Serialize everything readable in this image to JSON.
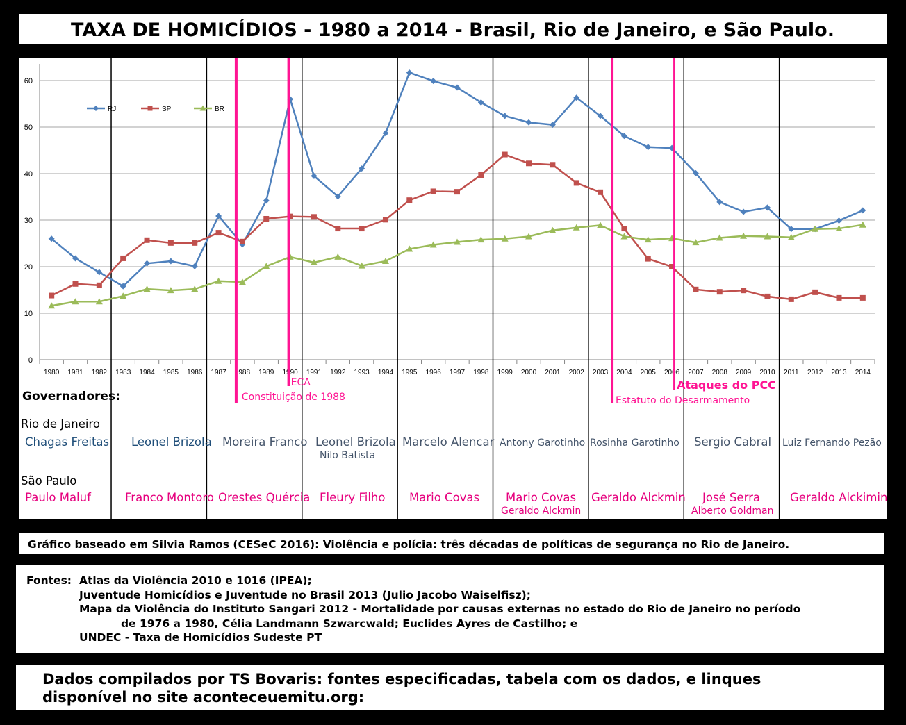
{
  "title": "TAXA DE HOMICÍDIOS - 1980 a 2014 - Brasil, Rio de Janeiro, e São Paulo.",
  "chart_data": {
    "type": "line",
    "x": [
      "1980",
      "1981",
      "1982",
      "1983",
      "1984",
      "1985",
      "1986",
      "1987",
      "1988",
      "1989",
      "1990",
      "1991",
      "1992",
      "1993",
      "1994",
      "1995",
      "1996",
      "1997",
      "1998",
      "1999",
      "2000",
      "2001",
      "2002",
      "2003",
      "2004",
      "2005",
      "2006",
      "2007",
      "2008",
      "2009",
      "2010",
      "2011",
      "2012",
      "2013",
      "2014"
    ],
    "yticks": [
      "0",
      "10",
      "20",
      "30",
      "40",
      "50",
      "60"
    ],
    "ylim": [
      0,
      63
    ],
    "grid": true,
    "legend_position": "top-left",
    "series": [
      {
        "name": "RJ",
        "color": "#4f81bd",
        "marker": "diamond",
        "values": [
          26,
          21.8,
          18.8,
          15.8,
          20.7,
          21.2,
          20.1,
          30.9,
          24.8,
          34.2,
          56,
          39.5,
          35.1,
          41.1,
          48.7,
          61.7,
          59.9,
          58.5,
          55.3,
          52.4,
          51,
          50.5,
          56.3,
          52.4,
          48.1,
          45.7,
          45.5,
          40.1,
          33.9,
          31.8,
          32.7,
          28.1,
          28.1,
          29.9,
          32.1
        ]
      },
      {
        "name": "SP",
        "color": "#c0504d",
        "marker": "square",
        "values": [
          13.8,
          16.3,
          16,
          21.8,
          25.7,
          25.1,
          25.1,
          27.3,
          25.4,
          30.3,
          30.8,
          30.7,
          28.2,
          28.2,
          30.1,
          34.3,
          36.2,
          36.1,
          39.7,
          44.1,
          42.2,
          41.9,
          38,
          36,
          28.2,
          21.7,
          20,
          15.1,
          14.6,
          14.9,
          13.6,
          13,
          14.5,
          13.3,
          13.3
        ]
      },
      {
        "name": "BR",
        "color": "#9bbb59",
        "marker": "triangle",
        "values": [
          11.6,
          12.5,
          12.5,
          13.7,
          15.2,
          14.9,
          15.2,
          16.9,
          16.7,
          20.1,
          22.1,
          20.9,
          22.1,
          20.2,
          21.2,
          23.8,
          24.7,
          25.3,
          25.8,
          26,
          26.5,
          27.8,
          28.4,
          28.9,
          26.5,
          25.8,
          26.1,
          25.2,
          26.2,
          26.6,
          26.5,
          26.3,
          28.1,
          28.2,
          29
        ]
      }
    ],
    "annotations": [
      {
        "text": "Constituição de 1988",
        "year": 1988
      },
      {
        "text": "ECA",
        "year": 1990
      },
      {
        "text": "Estatuto do Desarmamento",
        "year": 2003
      },
      {
        "text": "Ataques do PCC",
        "year": 2006
      }
    ]
  },
  "colors": {
    "rj_text": "#1f4e79",
    "sp_text": "#e6007e",
    "marker_line": "#ff1493"
  },
  "governors": {
    "header": "Governadores:",
    "rj_state": "Rio de Janeiro",
    "sp_state": "São Paulo",
    "rj": [
      "Chagas Freitas",
      "Leonel Brizola",
      "Moreira Franco",
      "Leonel Brizola",
      "Marcelo Alencar",
      "Antony Garotinho",
      "Rosinha Garotinho",
      "Sergio Cabral",
      "Luiz Fernando Pezão"
    ],
    "rj_extra": "Nilo Batista",
    "sp": [
      "Paulo Maluf",
      "Franco Montoro",
      "Orestes Quércia",
      "Fleury Filho",
      "Mario Covas",
      "Mario Covas",
      "Geraldo Alckmin",
      "José Serra",
      "Geraldo Alckimin"
    ],
    "sp_extra1": "Geraldo Alckmin",
    "sp_extra2": "Alberto Goldman"
  },
  "caption": "Gráfico baseado em Silvia Ramos (CESeC 2016): Violência e polícia: três décadas de políticas de segurança no Rio de Janeiro.",
  "sources": {
    "label": "Fontes:",
    "lines": [
      "Atlas da Violência 2010 e 1016 (IPEA);",
      "Juventude  Homicídios e Juventude no Brasil 2013 (Julio Jacobo Waiselfisz);",
      "Mapa da Violência do Instituto Sangari 2012 - Mortalidade por causas externas no estado do Rio de Janeiro no período",
      "de 1976 a 1980, Célia Landmann Szwarcwald; Euclides Ayres de Castilho; e",
      "UNDEC - Taxa de Homicídios Sudeste PT"
    ]
  },
  "compiled": {
    "line1": "Dados compilados por TS Bovaris: fontes especificadas, tabela com os dados, e linques",
    "line2": "disponível no site aconteceuemitu.org:"
  }
}
